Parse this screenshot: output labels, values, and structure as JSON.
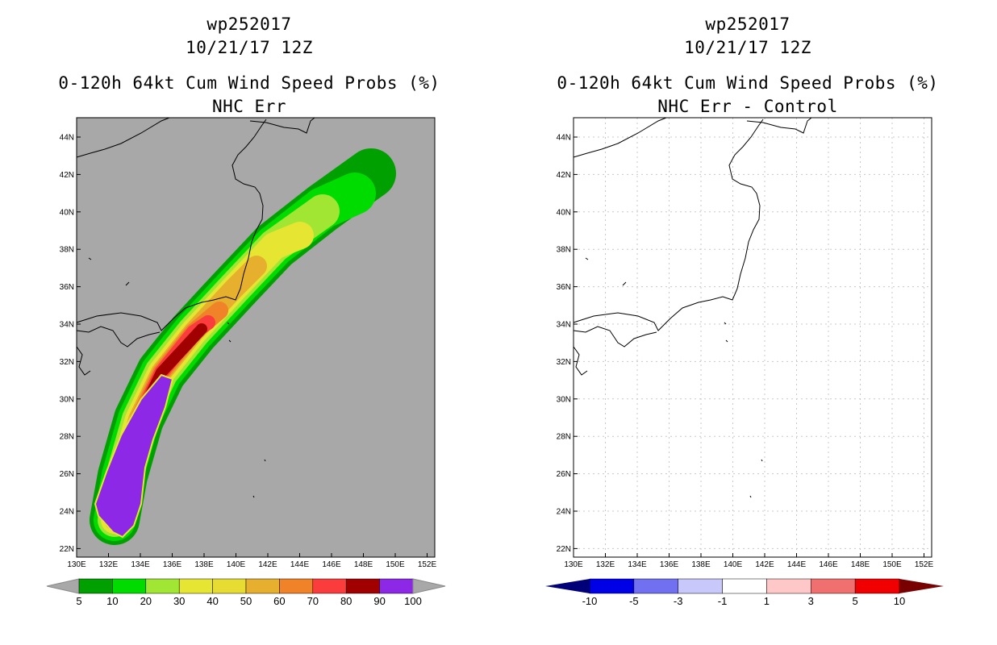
{
  "left": {
    "title_line1": "wp252017",
    "title_line2": "10/21/17 12Z",
    "title_line3": "0-120h 64kt Cum Wind Speed Probs (%)",
    "title_line4": "NHC Err",
    "background_color": "#a8a8a8",
    "lat_labels": [
      "44N",
      "42N",
      "40N",
      "38N",
      "36N",
      "34N",
      "32N",
      "30N",
      "28N",
      "26N",
      "24N",
      "22N"
    ],
    "lon_labels": [
      "130E",
      "132E",
      "134E",
      "136E",
      "138E",
      "140E",
      "142E",
      "144E",
      "146E",
      "148E",
      "150E",
      "152E"
    ],
    "colorbar": {
      "colors": [
        "#00a000",
        "#00dc00",
        "#a0e632",
        "#e6e632",
        "#e6dc32",
        "#e6af2d",
        "#f08228",
        "#fa3c3c",
        "#a00000",
        "#8c28e6"
      ],
      "labels": [
        "5",
        "10",
        "20",
        "30",
        "40",
        "50",
        "60",
        "70",
        "80",
        "90",
        "100"
      ],
      "under_color": "#a8a8a8",
      "over_color": "#a8a8a8"
    }
  },
  "right": {
    "title_line1": "wp252017",
    "title_line2": "10/21/17 12Z",
    "title_line3": "0-120h 64kt Cum Wind Speed Probs (%)",
    "title_line4": "NHC Err - Control",
    "background_color": "#ffffff",
    "lat_labels": [
      "44N",
      "42N",
      "40N",
      "38N",
      "36N",
      "34N",
      "32N",
      "30N",
      "28N",
      "26N",
      "24N",
      "22N"
    ],
    "lon_labels": [
      "130E",
      "132E",
      "134E",
      "136E",
      "138E",
      "140E",
      "142E",
      "144E",
      "146E",
      "148E",
      "150E",
      "152E"
    ],
    "colorbar": {
      "colors": [
        "#0000e6",
        "#7070f0",
        "#c8c8fa",
        "#ffffff",
        "#ffc8c8",
        "#f07070",
        "#f00000"
      ],
      "labels": [
        "-10",
        "-5",
        "-3",
        "-1",
        "1",
        "3",
        "5",
        "10"
      ],
      "under_color": "#000078",
      "over_color": "#780000"
    }
  }
}
